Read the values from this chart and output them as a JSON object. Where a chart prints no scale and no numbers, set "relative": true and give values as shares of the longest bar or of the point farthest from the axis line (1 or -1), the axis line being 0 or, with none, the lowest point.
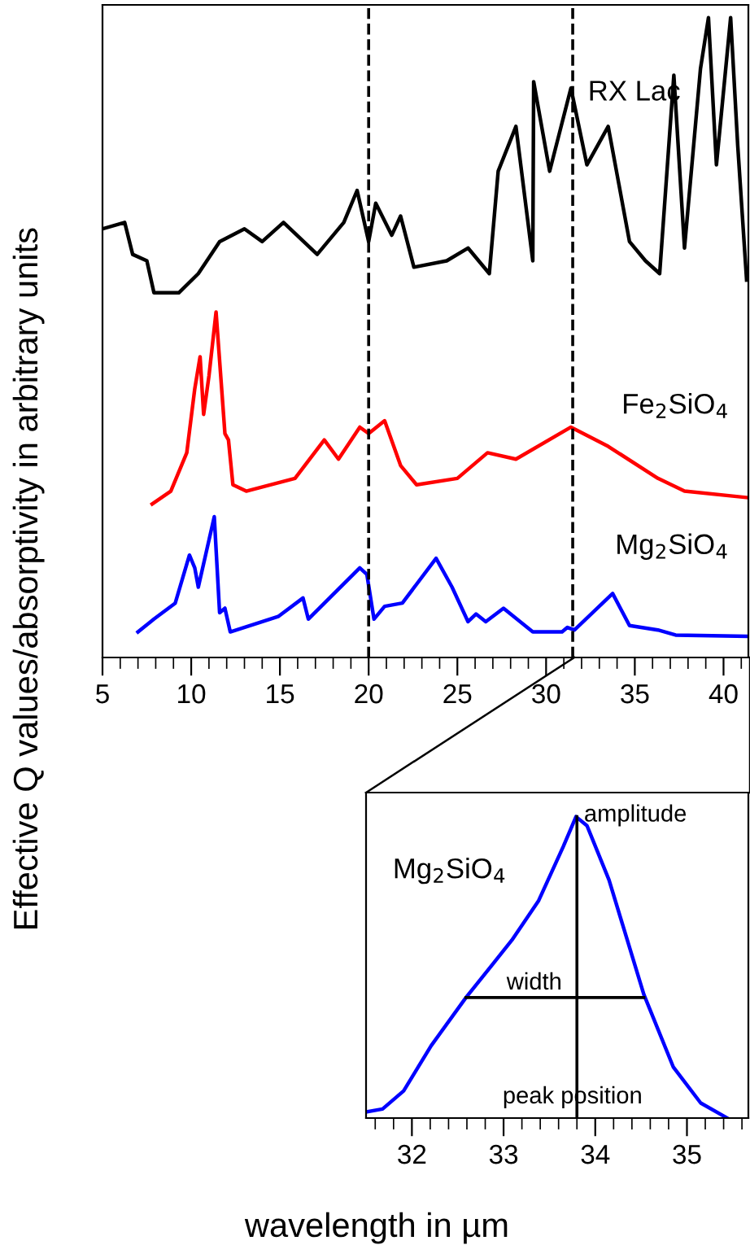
{
  "chart_data": [
    {
      "type": "line",
      "relative": true,
      "ylabel": "Effective Q values/absorptivity in arbitrary units",
      "xlabel": "wavelength in µm",
      "xlim": [
        5,
        41.4
      ],
      "xticks": [
        5,
        {
          "value": 6,
          "label": null
        },
        {
          "value": 7,
          "label": null
        },
        {
          "value": 8,
          "label": null
        },
        {
          "value": 9,
          "label": null
        },
        10,
        {
          "value": 11,
          "label": null
        },
        {
          "value": 12,
          "label": null
        },
        {
          "value": 13,
          "label": null
        },
        {
          "value": 14,
          "label": null
        },
        15,
        {
          "value": 16,
          "label": null
        },
        {
          "value": 17,
          "label": null
        },
        {
          "value": 18,
          "label": null
        },
        {
          "value": 19,
          "label": null
        },
        20,
        {
          "value": 21,
          "label": null
        },
        {
          "value": 22,
          "label": null
        },
        {
          "value": 23,
          "label": null
        },
        {
          "value": 24,
          "label": null
        },
        25,
        {
          "value": 26,
          "label": null
        },
        {
          "value": 27,
          "label": null
        },
        {
          "value": 28,
          "label": null
        },
        {
          "value": 29,
          "label": null
        },
        30,
        {
          "value": 31,
          "label": null
        },
        {
          "value": 32,
          "label": null
        },
        {
          "value": 33,
          "label": null
        },
        {
          "value": 34,
          "label": null
        },
        35,
        {
          "value": 36,
          "label": null
        },
        {
          "value": 37,
          "label": null
        },
        {
          "value": 38,
          "label": null
        },
        {
          "value": 39,
          "label": null
        },
        40,
        {
          "value": 41,
          "label": null
        }
      ],
      "tick_labels": "x",
      "grid": false,
      "legend": false,
      "line_style": "solid",
      "marker": "none",
      "ref_lines": [
        {
          "axis": "x",
          "value": 20,
          "color": "#000000",
          "line_style": "dashed"
        },
        {
          "axis": "x",
          "value": 31.5,
          "color": "#000000",
          "line_style": "dashed"
        }
      ],
      "series": [
        {
          "name": "RX Lac",
          "color": "#000000",
          "x": [
            5.0,
            6.25,
            6.7,
            7.5,
            7.9,
            9.3,
            10.4,
            11.6,
            13.0,
            14.0,
            15.2,
            17.1,
            18.6,
            19.35,
            20.0,
            20.4,
            21.3,
            21.8,
            22.55,
            24.4,
            25.6,
            26.8,
            27.3,
            28.3,
            29.25,
            29.3,
            30.2,
            31.4,
            32.3,
            33.5,
            34.7,
            35.6,
            36.4,
            37.2,
            37.8,
            38.7,
            39.15,
            39.6,
            40.4,
            40.8,
            41.3
          ],
          "values": [
            0.67,
            0.68,
            0.63,
            0.62,
            0.57,
            0.57,
            0.6,
            0.65,
            0.67,
            0.65,
            0.68,
            0.63,
            0.68,
            0.73,
            0.65,
            0.71,
            0.66,
            0.69,
            0.61,
            0.62,
            0.64,
            0.6,
            0.76,
            0.83,
            0.62,
            0.9,
            0.76,
            0.89,
            0.77,
            0.83,
            0.65,
            0.62,
            0.6,
            0.91,
            0.64,
            0.92,
            1.0,
            0.77,
            1.0,
            0.8,
            0.59
          ]
        },
        {
          "name": "Fe$_{2}$SiO$_{4}$",
          "color": "#ff0000",
          "x": [
            7.8,
            8.85,
            9.75,
            10.2,
            10.5,
            10.7,
            11.0,
            11.4,
            11.9,
            12.1,
            12.35,
            13.1,
            15.85,
            17.5,
            18.3,
            19.5,
            20.0,
            20.9,
            21.8,
            22.7,
            25.0,
            26.7,
            28.3,
            31.4,
            33.5,
            36.3,
            37.8,
            41.3
          ],
          "values": [
            0.24,
            0.26,
            0.32,
            0.42,
            0.47,
            0.38,
            0.44,
            0.54,
            0.35,
            0.34,
            0.27,
            0.26,
            0.28,
            0.34,
            0.31,
            0.36,
            0.35,
            0.37,
            0.3,
            0.27,
            0.28,
            0.32,
            0.31,
            0.36,
            0.33,
            0.28,
            0.26,
            0.25
          ]
        },
        {
          "name": "Mg$_{2}$SiO$_{4}$",
          "color": "#0000ff",
          "x": [
            7.0,
            7.9,
            9.1,
            9.9,
            10.2,
            10.4,
            11.3,
            11.6,
            11.9,
            12.2,
            14.9,
            16.3,
            16.6,
            19.5,
            19.9,
            20.3,
            20.9,
            21.9,
            23.8,
            24.7,
            25.6,
            26.05,
            26.6,
            27.6,
            29.25,
            30.9,
            31.2,
            31.6,
            33.75,
            34.7,
            36.3,
            37.3,
            41.3
          ],
          "values": [
            0.04,
            0.06,
            0.085,
            0.16,
            0.14,
            0.11,
            0.22,
            0.07,
            0.077,
            0.04,
            0.064,
            0.093,
            0.06,
            0.14,
            0.13,
            0.06,
            0.08,
            0.085,
            0.155,
            0.11,
            0.056,
            0.068,
            0.056,
            0.077,
            0.04,
            0.04,
            0.047,
            0.043,
            0.1,
            0.05,
            0.043,
            0.035,
            0.033
          ]
        }
      ]
    },
    {
      "type": "line",
      "relative": true,
      "xlim": [
        31.5,
        35.67
      ],
      "xticks": [
        {
          "value": 31.6,
          "label": null
        },
        {
          "value": 31.8,
          "label": null
        },
        32,
        {
          "value": 32.2,
          "label": null
        },
        {
          "value": 32.4,
          "label": null
        },
        {
          "value": 32.6,
          "label": null
        },
        {
          "value": 32.8,
          "label": null
        },
        33,
        {
          "value": 33.2,
          "label": null
        },
        {
          "value": 33.4,
          "label": null
        },
        {
          "value": 33.6,
          "label": null
        },
        {
          "value": 33.8,
          "label": null
        },
        34,
        {
          "value": 34.2,
          "label": null
        },
        {
          "value": 34.4,
          "label": null
        },
        {
          "value": 34.6,
          "label": null
        },
        {
          "value": 34.8,
          "label": null
        },
        35,
        {
          "value": 35.2,
          "label": null
        },
        {
          "value": 35.4,
          "label": null
        },
        {
          "value": 35.6,
          "label": null
        }
      ],
      "tick_labels": "x",
      "grid": false,
      "legend": false,
      "marker": "none",
      "annotations": [
        "amplitude",
        "width",
        "peak position"
      ],
      "series": [
        {
          "name": "Mg$_{2}$SiO$_{4}$",
          "color": "#0000ff",
          "x": [
            31.5,
            31.68,
            31.91,
            32.21,
            32.59,
            32.88,
            33.09,
            33.38,
            33.65,
            33.79,
            33.91,
            34.15,
            34.53,
            34.85,
            35.15,
            35.44
          ],
          "values": [
            0.02,
            0.03,
            0.09,
            0.24,
            0.4,
            0.51,
            0.59,
            0.72,
            0.9,
            1.0,
            0.97,
            0.79,
            0.41,
            0.17,
            0.05,
            0.0
          ]
        },
        {
          "color": "#000000",
          "x": [
            33.8,
            33.8
          ],
          "values": [
            0.0,
            1.0
          ]
        },
        {
          "color": "#000000",
          "x": [
            32.59,
            34.53
          ],
          "values": [
            0.4,
            0.4
          ]
        }
      ]
    }
  ]
}
